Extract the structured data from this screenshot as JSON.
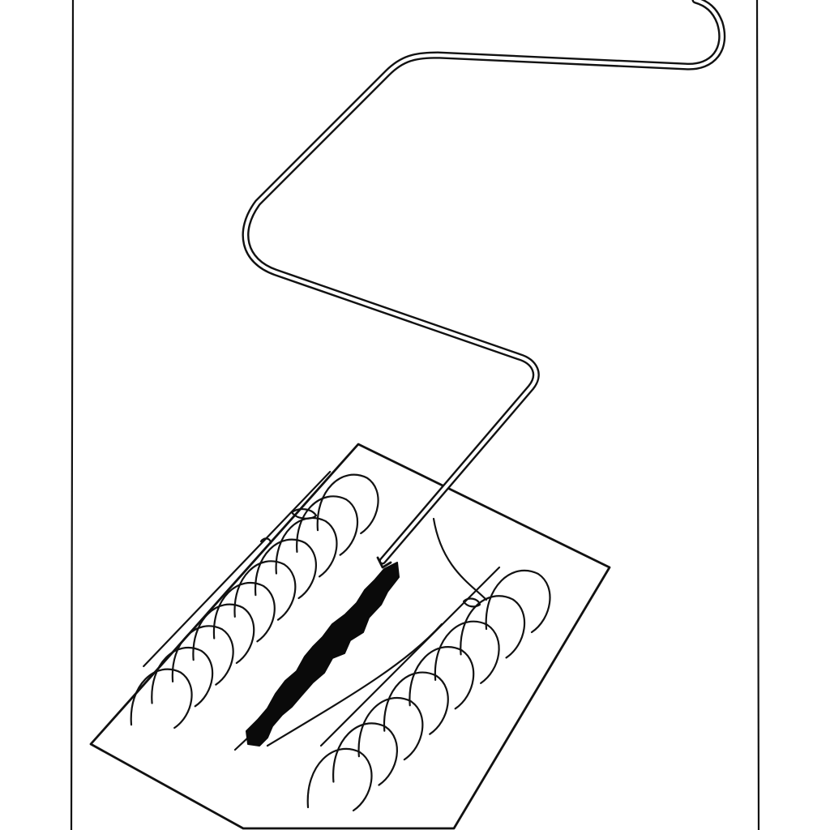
{
  "illustration": {
    "subject": "welding-sketch",
    "colors": {
      "ink": "#111111",
      "paper": "#ffffff",
      "seam": "#0a0a0a"
    },
    "bead_count_left": 10,
    "bead_count_right": 8
  }
}
